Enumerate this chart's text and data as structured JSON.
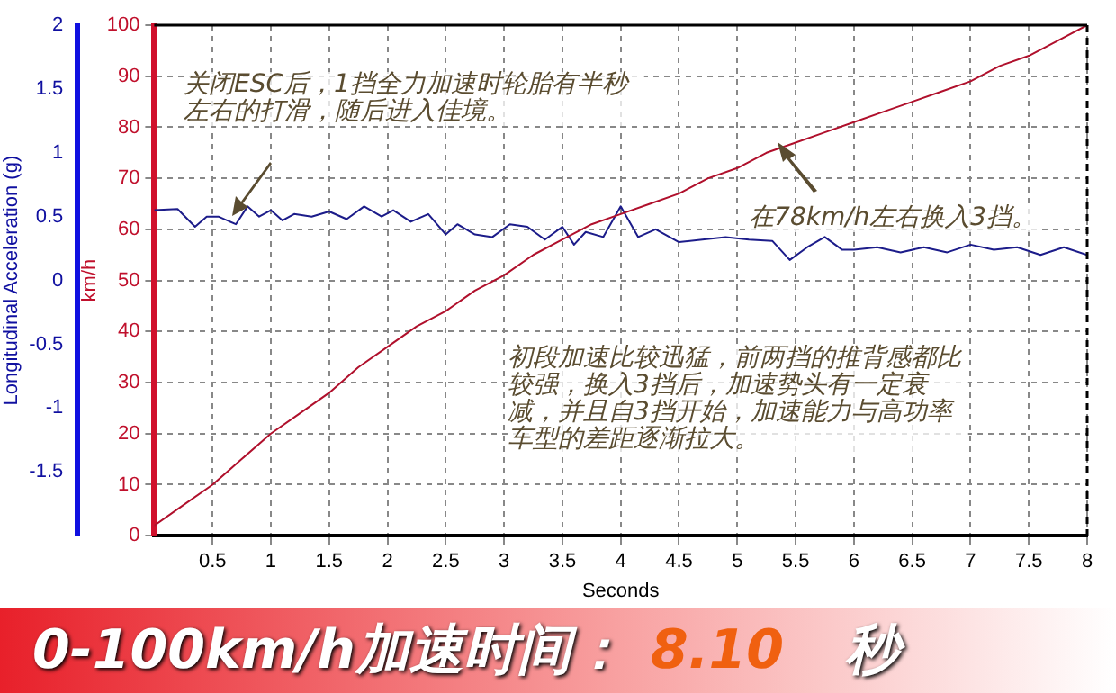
{
  "chart_data": {
    "type": "line",
    "xlabel": "Seconds",
    "ylabel": "km/h",
    "y2label": "Longitudinal Acceleration (g)",
    "xlim": [
      0,
      8
    ],
    "xticks": [
      0.5,
      1,
      1.5,
      2,
      2.5,
      3,
      3.5,
      4,
      4.5,
      5,
      5.5,
      6,
      6.5,
      7,
      7.5,
      8
    ],
    "ylim": [
      0,
      100
    ],
    "yticks": [
      0,
      10,
      20,
      30,
      40,
      50,
      60,
      70,
      80,
      90,
      100
    ],
    "y2lim": [
      -2,
      2
    ],
    "y2ticks": [
      -1.5,
      -1,
      -0.5,
      0,
      0.5,
      1,
      1.5,
      2
    ],
    "grid": true,
    "series": [
      {
        "color": "#b0102c",
        "x": [
          0,
          0.25,
          0.5,
          0.75,
          1,
          1.25,
          1.5,
          1.75,
          2,
          2.25,
          2.5,
          2.75,
          3,
          3.25,
          3.5,
          3.75,
          4,
          4.25,
          4.5,
          4.75,
          5,
          5.25,
          5.5,
          5.75,
          6,
          6.25,
          6.5,
          6.75,
          7,
          7.25,
          7.5,
          7.75,
          8
        ],
        "values": [
          2,
          6,
          10,
          15,
          20,
          24,
          28,
          33,
          37,
          41,
          44,
          48,
          51,
          55,
          58,
          61,
          63,
          65,
          67,
          70,
          72,
          75,
          77,
          79,
          81,
          83,
          85,
          87,
          89,
          92,
          94,
          97,
          100
        ]
      },
      {
        "color": "#1c1c8a",
        "axis": "y2",
        "x": [
          0,
          0.2,
          0.35,
          0.45,
          0.55,
          0.7,
          0.8,
          0.9,
          1.0,
          1.1,
          1.2,
          1.35,
          1.5,
          1.65,
          1.8,
          1.95,
          2.05,
          2.2,
          2.35,
          2.5,
          2.6,
          2.75,
          2.9,
          3.05,
          3.2,
          3.35,
          3.5,
          3.6,
          3.7,
          3.85,
          4.0,
          4.15,
          4.3,
          4.5,
          4.7,
          4.9,
          5.1,
          5.3,
          5.45,
          5.6,
          5.75,
          5.9,
          6.0,
          6.2,
          6.4,
          6.6,
          6.8,
          7.0,
          7.2,
          7.4,
          7.6,
          7.8,
          8
        ],
        "values": [
          0.55,
          0.56,
          0.42,
          0.5,
          0.5,
          0.44,
          0.58,
          0.5,
          0.55,
          0.47,
          0.52,
          0.5,
          0.54,
          0.48,
          0.58,
          0.5,
          0.55,
          0.46,
          0.52,
          0.36,
          0.44,
          0.36,
          0.34,
          0.44,
          0.42,
          0.32,
          0.42,
          0.28,
          0.38,
          0.34,
          0.58,
          0.34,
          0.4,
          0.3,
          0.32,
          0.34,
          0.32,
          0.31,
          0.16,
          0.26,
          0.34,
          0.24,
          0.24,
          0.26,
          0.22,
          0.26,
          0.22,
          0.28,
          0.24,
          0.26,
          0.2,
          0.26,
          0.2
        ]
      }
    ],
    "annotations": [
      "关闭ESC后，1挡全力加速时轮胎有半秒左右的打滑，随后进入佳境。",
      {
        "text": "在78km/h左右换入3挡。",
        "x": 5.5,
        "y": 77
      },
      "初段加速比较迅猛，前两挡的推背感都比较强，换入3挡后，加速势头有一定衰减，并且自3挡开始，加速能力与高功率车型的差距逐渐拉大。",
      "0-100km/h加速时间：",
      "8.10",
      "秒"
    ]
  }
}
